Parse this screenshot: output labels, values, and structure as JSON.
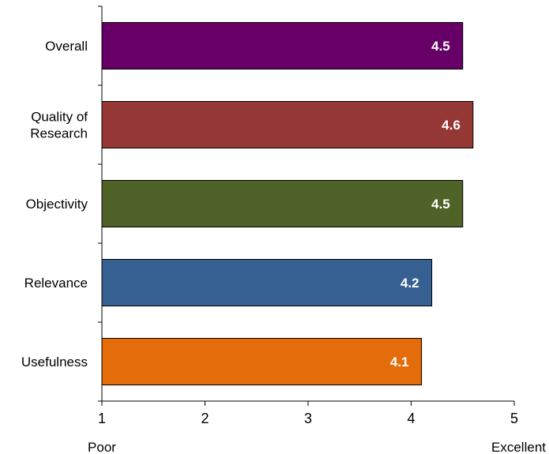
{
  "chart_data": {
    "type": "bar",
    "orientation": "horizontal",
    "categories": [
      "Overall",
      "Quality of\nResearch",
      "Objectivity",
      "Relevance",
      "Usefulness"
    ],
    "values": [
      4.5,
      4.6,
      4.5,
      4.2,
      4.1
    ],
    "value_labels": [
      "4.5",
      "4.6",
      "4.5",
      "4.2",
      "4.1"
    ],
    "colors": [
      "#660066",
      "#953735",
      "#4F6228",
      "#376092",
      "#E46C0A"
    ],
    "xlim": [
      1,
      5
    ],
    "xticks": [
      "1",
      "2",
      "3",
      "4",
      "5"
    ],
    "axis_end_labels": {
      "low": "Poor",
      "high": "Excellent"
    },
    "title": "",
    "xlabel": "",
    "ylabel": "",
    "grid": false,
    "legend": "none"
  }
}
